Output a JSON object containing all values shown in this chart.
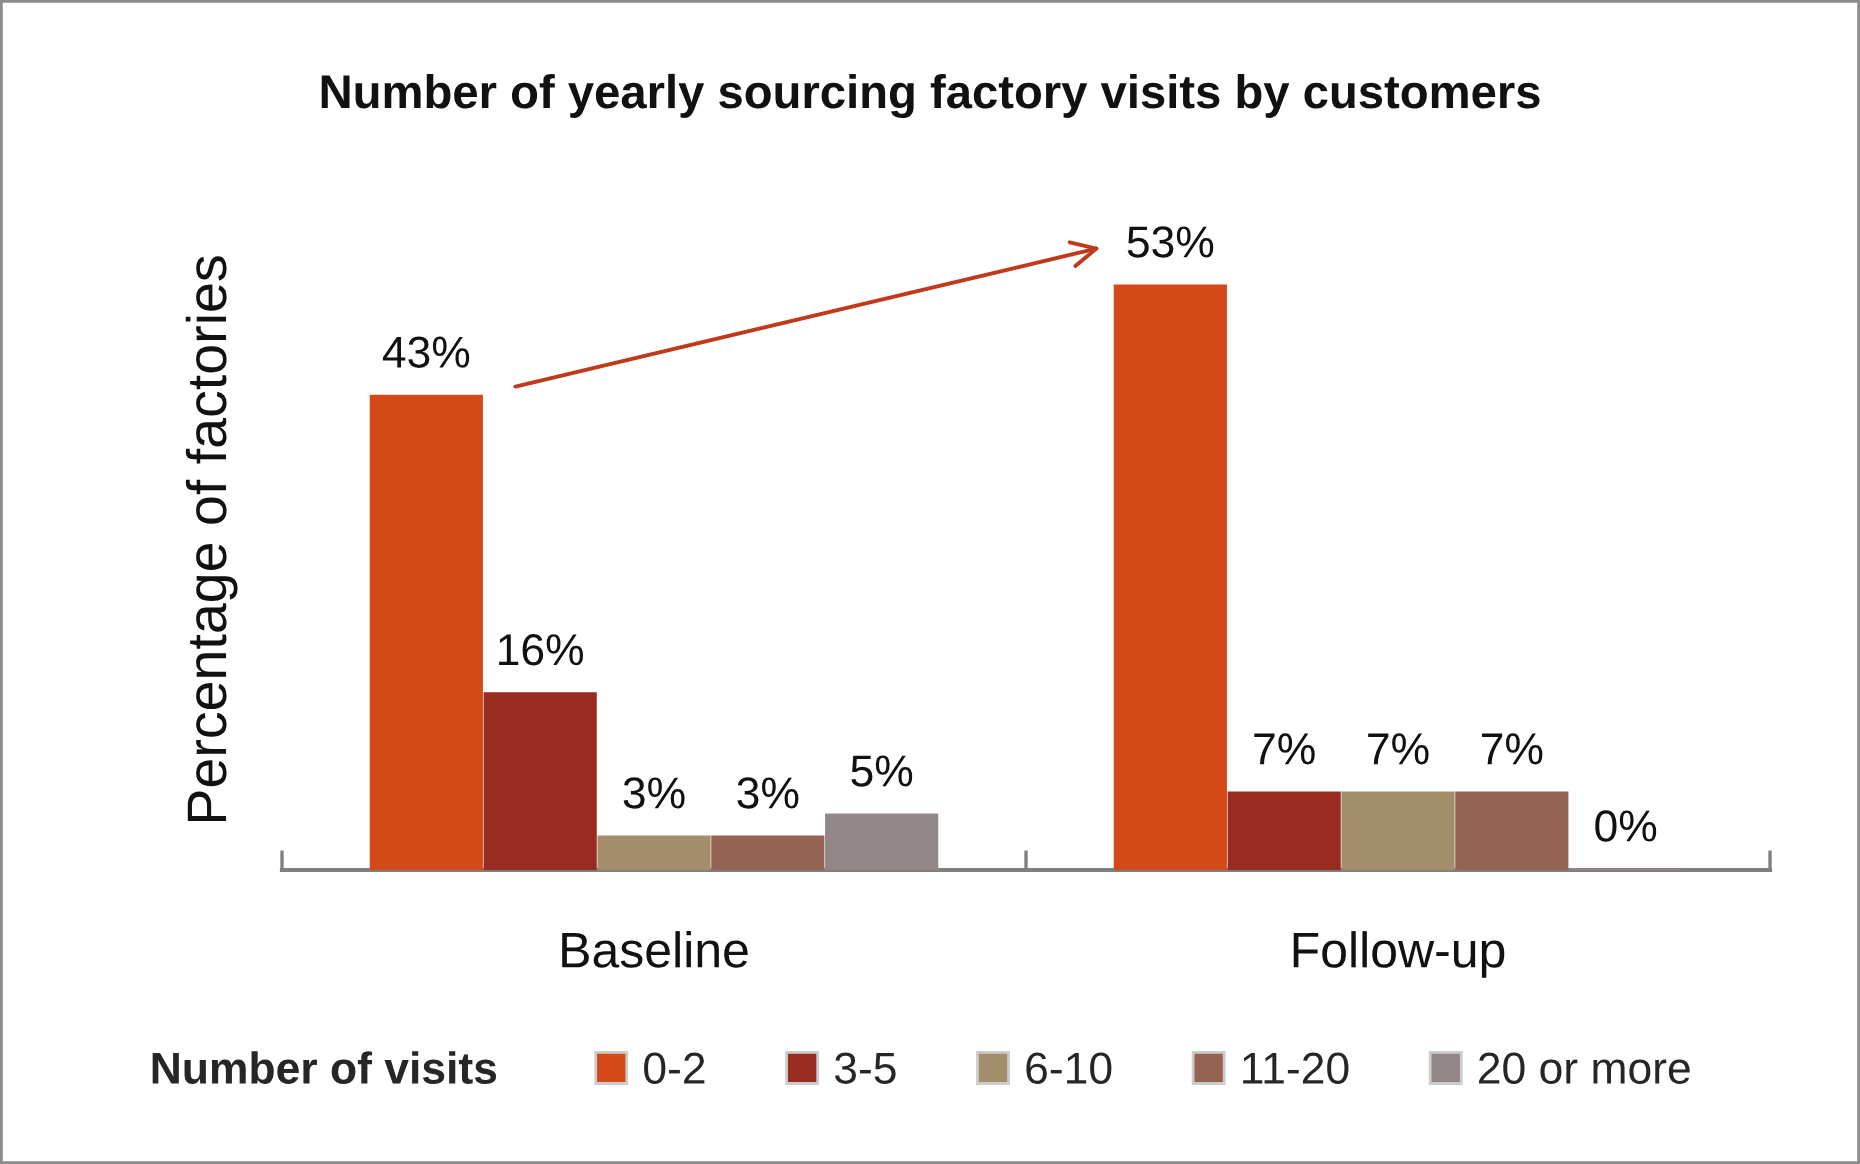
{
  "chart_data": {
    "type": "bar",
    "title": "Number of yearly sourcing factory visits by customers",
    "ylabel": "Percentage of factories",
    "legend_title": "Number of visits",
    "legend": "bottom",
    "categories": [
      "Baseline",
      "Follow-up"
    ],
    "series": [
      {
        "name": "0-2",
        "color": "#d34a18",
        "values": [
          43,
          53
        ],
        "value_labels": [
          "43%",
          "53%"
        ]
      },
      {
        "name": "3-5",
        "color": "#992b20",
        "values": [
          16,
          7
        ],
        "value_labels": [
          "16%",
          "7%"
        ]
      },
      {
        "name": "6-10",
        "color": "#a38d6b",
        "values": [
          3,
          7
        ],
        "value_labels": [
          "3%",
          "7%"
        ]
      },
      {
        "name": "11-20",
        "color": "#956352",
        "values": [
          3,
          7
        ],
        "value_labels": [
          "3%",
          "7%"
        ]
      },
      {
        "name": "20 or more",
        "color": "#938687",
        "values": [
          5,
          0
        ],
        "value_labels": [
          "5%",
          "0%"
        ]
      }
    ]
  }
}
